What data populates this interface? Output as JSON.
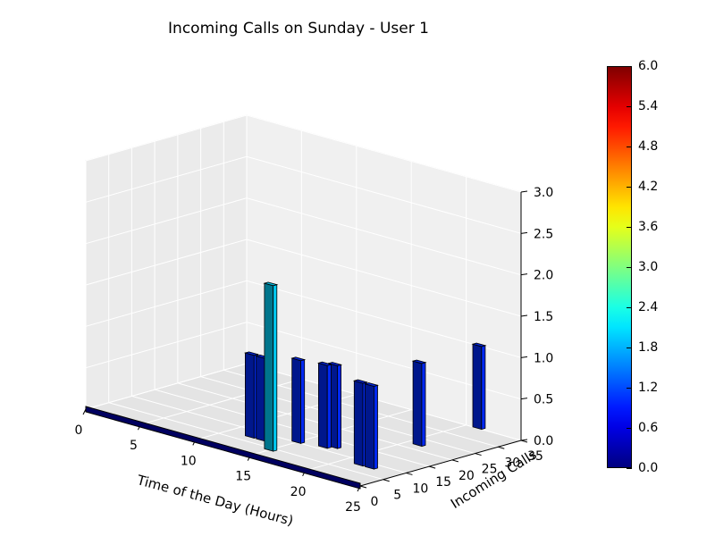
{
  "chart_data": {
    "type": "bar3d",
    "title": "Incoming Calls on Sunday - User 1",
    "xlabel": "Time of the Day (Hours)",
    "ylabel": "Incoming Calls",
    "zlabel": "",
    "xlim": [
      0,
      25
    ],
    "ylim": [
      0,
      35
    ],
    "zlim": [
      0,
      3
    ],
    "xticks": [
      "0",
      "5",
      "10",
      "15",
      "20",
      "25"
    ],
    "yticks": [
      "0",
      "5",
      "10",
      "15",
      "20",
      "25",
      "30",
      "35"
    ],
    "zticks": [
      "0.0",
      "0.5",
      "1.0",
      "1.5",
      "2.0",
      "2.5",
      "3.0"
    ],
    "colormap": "jet",
    "bars": [
      {
        "x": 15.0,
        "y": 4,
        "dz": 2.0
      },
      {
        "x": 12.0,
        "y": 7,
        "dz": 1.0
      },
      {
        "x": 13.0,
        "y": 7,
        "dz": 1.0
      },
      {
        "x": 15.0,
        "y": 10,
        "dz": 1.0
      },
      {
        "x": 17.0,
        "y": 11,
        "dz": 1.0
      },
      {
        "x": 17.5,
        "y": 12,
        "dz": 1.0
      },
      {
        "x": 21.5,
        "y": 8,
        "dz": 1.0
      },
      {
        "x": 22.5,
        "y": 8,
        "dz": 1.0
      },
      {
        "x": 21.0,
        "y": 22,
        "dz": 1.0
      },
      {
        "x": 21.0,
        "y": 35,
        "dz": 1.0
      }
    ],
    "colorbar": {
      "min": 0.0,
      "max": 6.0,
      "ticks": [
        "0.0",
        "0.6",
        "1.2",
        "1.8",
        "2.4",
        "3.0",
        "3.6",
        "4.2",
        "4.8",
        "5.4",
        "6.0"
      ]
    },
    "baseline": {
      "y": 0,
      "x_range": [
        0,
        25
      ]
    }
  }
}
